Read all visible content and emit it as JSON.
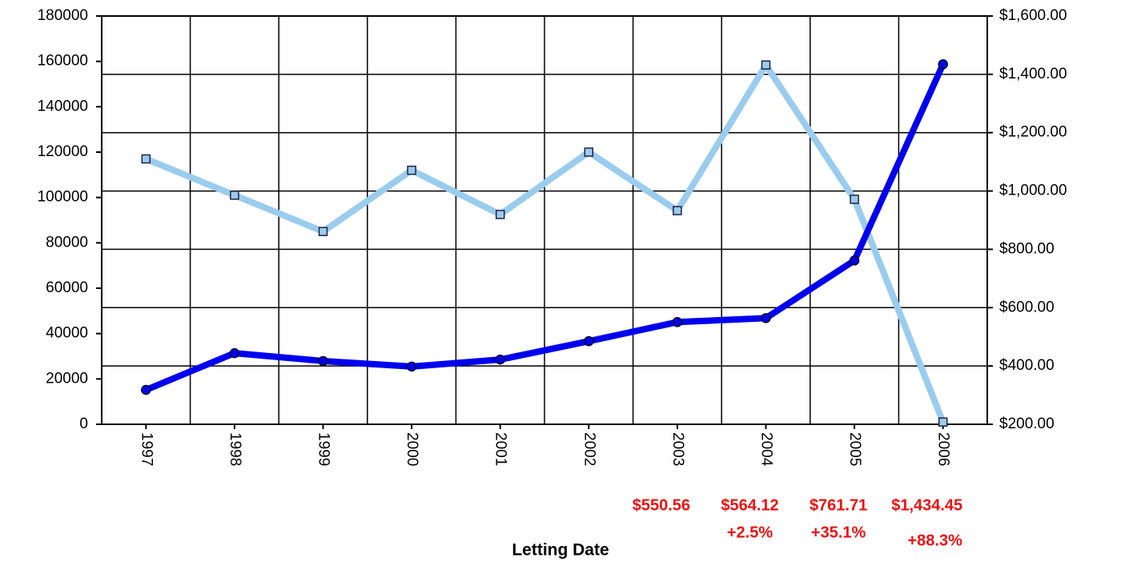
{
  "chart_data": {
    "type": "line",
    "x_label": "Letting Date",
    "categories": [
      "1997",
      "1998",
      "1999",
      "2000",
      "2001",
      "2002",
      "2003",
      "2004",
      "2005",
      "2006"
    ],
    "series": [
      {
        "color": "#99ccee",
        "marker": "square",
        "values": [
          117000,
          101000,
          85000,
          112000,
          92500,
          120000,
          94200,
          158400,
          99200,
          1000
        ]
      },
      {
        "color": "#0000ee",
        "marker": "circle",
        "axis": "y2",
        "values": [
          318,
          444,
          417,
          398,
          422,
          485,
          550.56,
          564.12,
          761.71,
          1434.45
        ],
        "value_labels": [
          null,
          null,
          null,
          null,
          null,
          null,
          "$550.56",
          "$564.12",
          "$761.71",
          "$1,434.45"
        ],
        "change_labels": [
          null,
          null,
          null,
          null,
          null,
          null,
          null,
          "+2.5%",
          "+35.1%",
          "+88.3%"
        ]
      }
    ],
    "ylim": [
      0,
      180000
    ],
    "yticks": [
      0,
      20000,
      40000,
      60000,
      80000,
      100000,
      120000,
      140000,
      160000,
      180000
    ],
    "y2lim": [
      200,
      1600
    ],
    "y2ticks": [
      {
        "value": 200,
        "label": "$200.00"
      },
      {
        "value": 400,
        "label": "$400.00"
      },
      {
        "value": 600,
        "label": "$600.00"
      },
      {
        "value": 800,
        "label": "$800.00"
      },
      {
        "value": 1000,
        "label": "$1,000.00"
      },
      {
        "value": 1200,
        "label": "$1,200.00"
      },
      {
        "value": 1400,
        "label": "$1,400.00"
      },
      {
        "value": 1600,
        "label": "$1,600.00"
      }
    ],
    "grid": true
  }
}
